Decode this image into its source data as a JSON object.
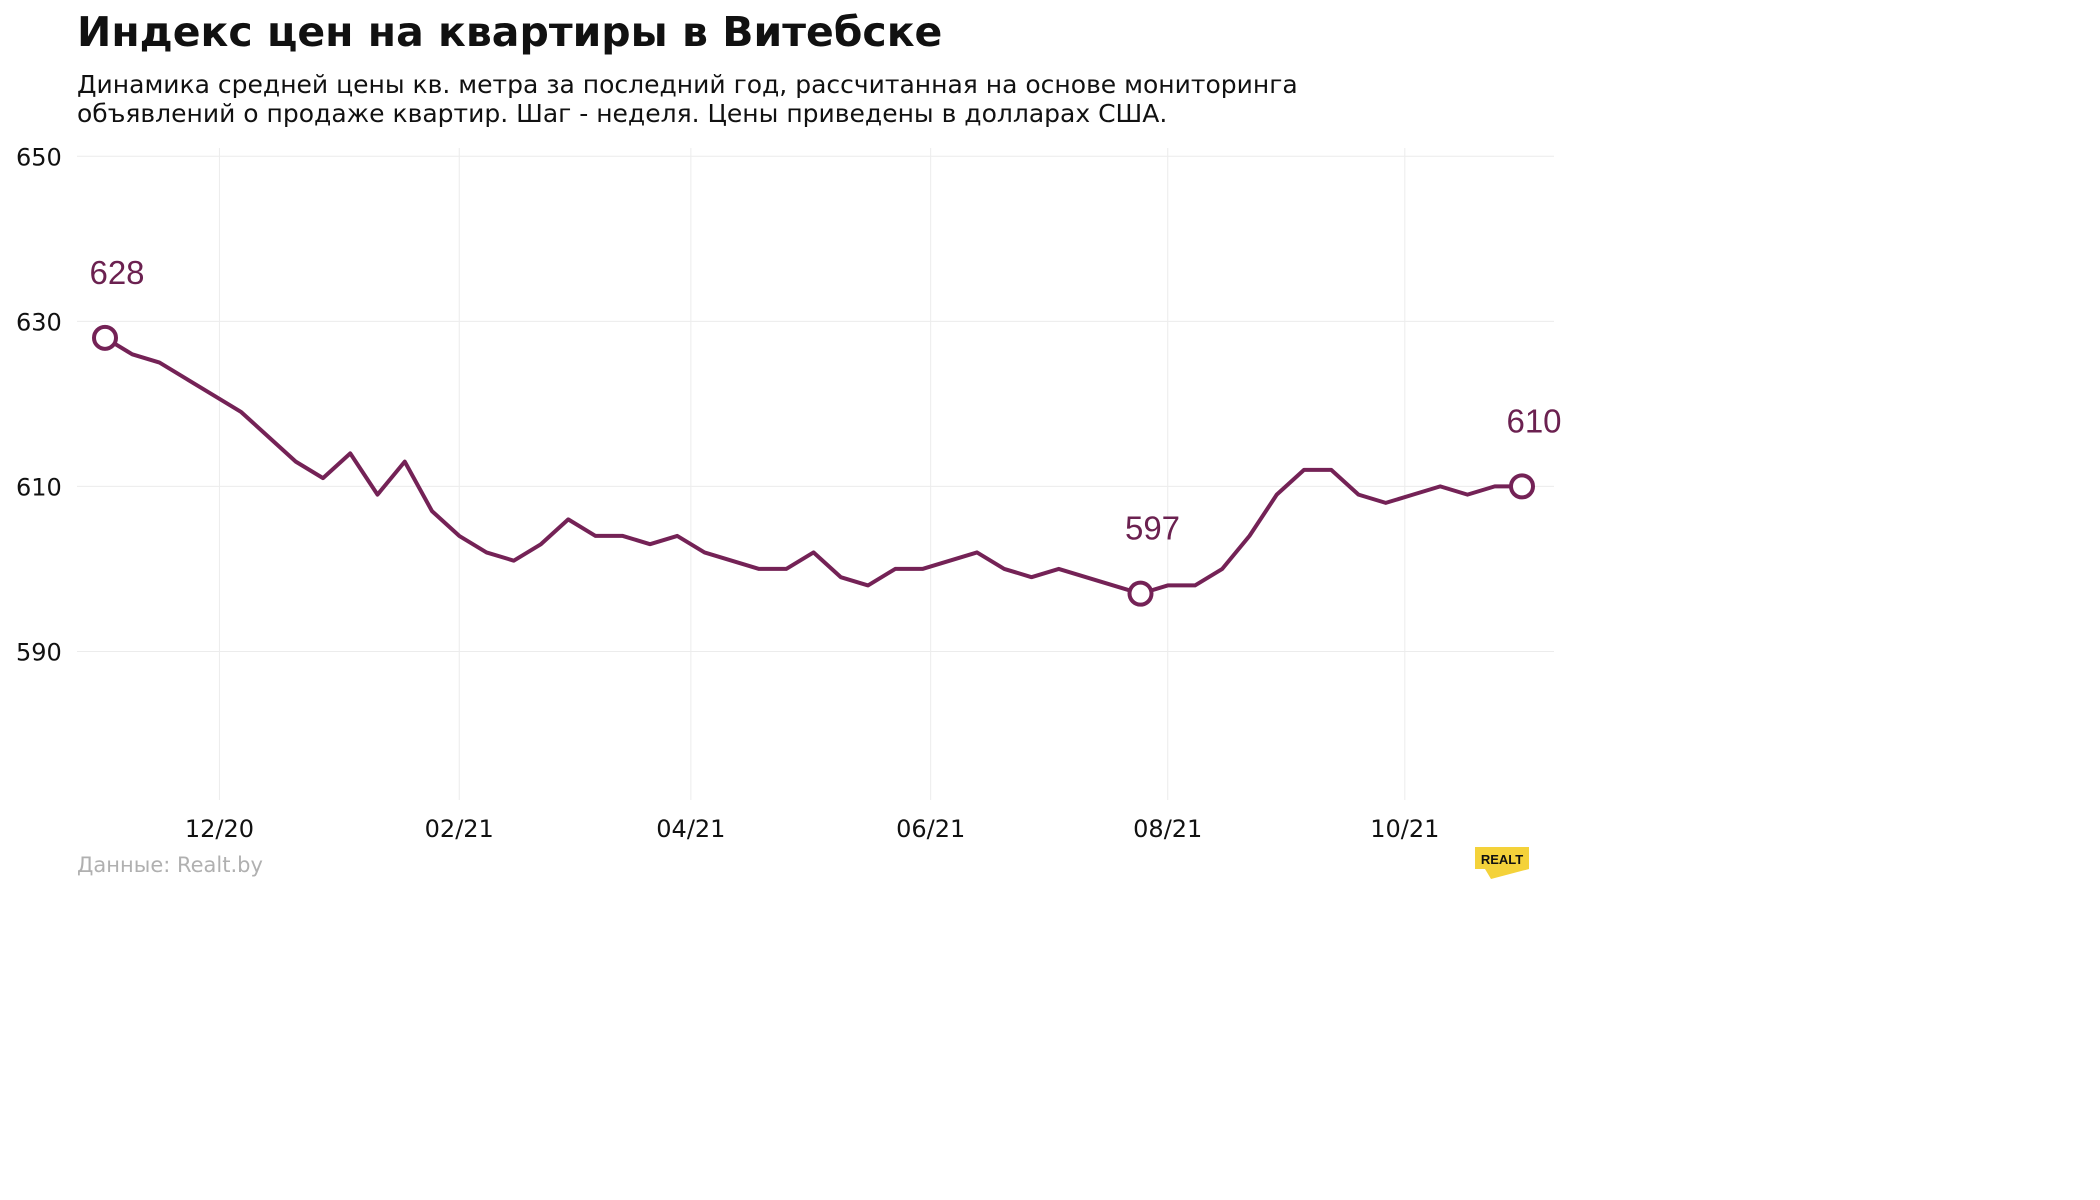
{
  "title": "Индекс цен на квартиры в Витебске",
  "subtitle": "Динамика средней цены кв. метра за последний год, рассчитанная на основе мониторинга объявлений о продаже квартир. Шаг - неделя. Цены приведены в долларах США.",
  "source": "Данные: Realt.by",
  "logo_text": "REALT",
  "colors": {
    "line": "#742256",
    "grid": "#ececec",
    "logo": "#f4d23a",
    "text": "#111111",
    "source": "#b0b0b0"
  },
  "chart_data": {
    "type": "line",
    "title": "Индекс цен на квартиры в Витебске",
    "xlabel": "",
    "ylabel": "",
    "ylim": [
      572,
      651
    ],
    "y_ticks": [
      590,
      610,
      630,
      650
    ],
    "x_ticks": [
      "12/20",
      "02/21",
      "04/21",
      "06/21",
      "08/21",
      "10/21"
    ],
    "x_tick_week_index": [
      4.2,
      13.0,
      21.5,
      30.3,
      39.0,
      47.7
    ],
    "grid": true,
    "legend": "none",
    "series": [
      {
        "name": "",
        "values": [
          628,
          626,
          625,
          623,
          621,
          619,
          616,
          613,
          611,
          614,
          609,
          613,
          607,
          604,
          602,
          601,
          603,
          606,
          604,
          604,
          603,
          604,
          602,
          601,
          600,
          600,
          602,
          599,
          598,
          600,
          600,
          601,
          602,
          600,
          599,
          600,
          599,
          598,
          597,
          598,
          598,
          600,
          604,
          609,
          612,
          612,
          609,
          608,
          609,
          610,
          609,
          610,
          610
        ]
      }
    ],
    "annotations": [
      {
        "index": 0,
        "label": "628"
      },
      {
        "index": 38,
        "label": "597"
      },
      {
        "index": 52,
        "label": "610"
      }
    ]
  }
}
